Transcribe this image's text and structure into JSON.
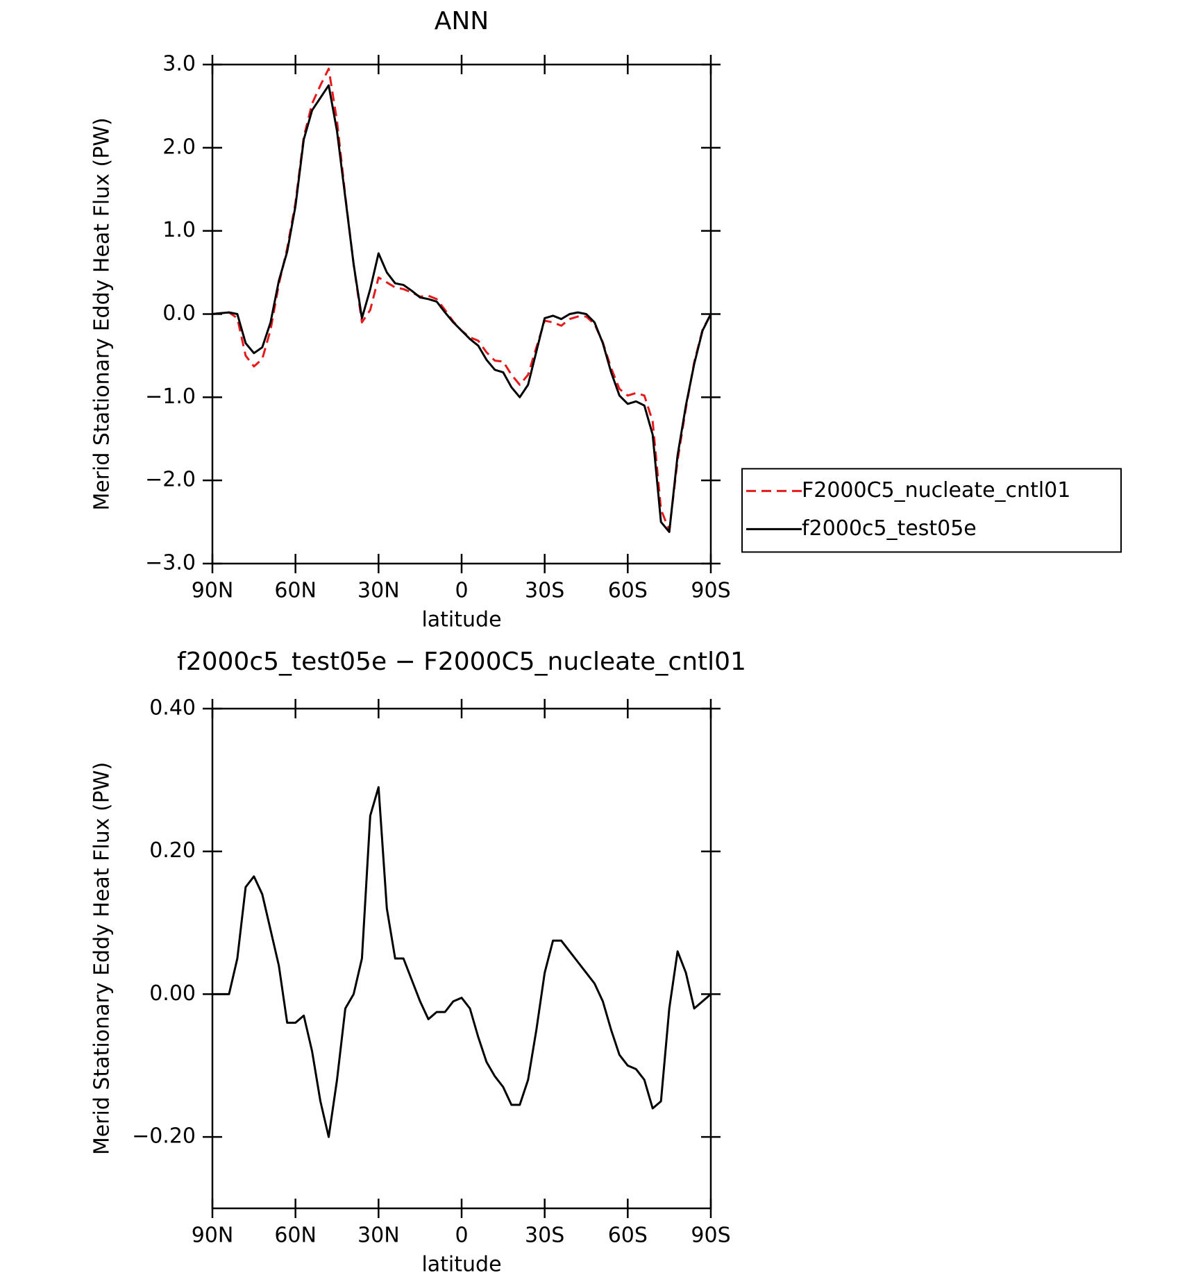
{
  "chart_data": [
    {
      "type": "line",
      "title": "ANN",
      "x_label": "latitude",
      "y_label": "Merid Stationary Eddy Heat Flux (PW)",
      "x": [
        90,
        87,
        84,
        81,
        78,
        75,
        72,
        69,
        66,
        63,
        60,
        57,
        54,
        51,
        48,
        45,
        42,
        39,
        36,
        33,
        30,
        27,
        24,
        21,
        18,
        15,
        12,
        9,
        6,
        3,
        0,
        -3,
        -6,
        -9,
        -12,
        -15,
        -18,
        -21,
        -24,
        -27,
        -30,
        -33,
        -36,
        -39,
        -42,
        -45,
        -48,
        -51,
        -54,
        -57,
        -60,
        -63,
        -66,
        -69,
        -72,
        -75,
        -78,
        -81,
        -84,
        -87,
        -90
      ],
      "series": [
        {
          "name": "F2000C5_nucleate_cntl01",
          "color": "#e41a1c",
          "dashed": true,
          "values": [
            0,
            0.01,
            0.02,
            -0.05,
            -0.5,
            -0.63,
            -0.54,
            -0.19,
            0.36,
            0.79,
            1.34,
            2.13,
            2.53,
            2.75,
            2.95,
            2.32,
            1.42,
            0.6,
            -0.1,
            0.05,
            0.44,
            0.38,
            0.32,
            0.3,
            0.26,
            0.21,
            0.22,
            0.18,
            0.05,
            -0.09,
            -0.2,
            -0.28,
            -0.32,
            -0.46,
            -0.56,
            -0.57,
            -0.73,
            -0.85,
            -0.73,
            -0.4,
            -0.08,
            -0.1,
            -0.14,
            -0.06,
            -0.03,
            -0.03,
            -0.12,
            -0.34,
            -0.65,
            -0.9,
            -0.98,
            -0.95,
            -0.98,
            -1.29,
            -2.35,
            -2.6,
            -1.76,
            -1.13,
            -0.58,
            -0.19,
            0
          ]
        },
        {
          "name": "f2000c5_test05e",
          "color": "#000000",
          "dashed": false,
          "values": [
            0,
            0.01,
            0.02,
            0,
            -0.35,
            -0.47,
            -0.4,
            -0.1,
            0.4,
            0.75,
            1.3,
            2.1,
            2.45,
            2.6,
            2.75,
            2.2,
            1.4,
            0.6,
            -0.05,
            0.3,
            0.73,
            0.5,
            0.37,
            0.35,
            0.28,
            0.2,
            0.18,
            0.15,
            0.02,
            -0.1,
            -0.2,
            -0.3,
            -0.38,
            -0.55,
            -0.67,
            -0.7,
            -0.88,
            -1.0,
            -0.85,
            -0.45,
            -0.05,
            -0.02,
            -0.06,
            0,
            0.02,
            0,
            -0.1,
            -0.35,
            -0.7,
            -0.98,
            -1.08,
            -1.05,
            -1.1,
            -1.45,
            -2.5,
            -2.62,
            -1.7,
            -1.1,
            -0.6,
            -0.2,
            0
          ]
        }
      ],
      "xlim": [
        90,
        -90
      ],
      "xticks": [
        {
          "value": 90,
          "label": "90N"
        },
        {
          "value": 60,
          "label": "60N"
        },
        {
          "value": 30,
          "label": "30N"
        },
        0,
        {
          "value": -30,
          "label": "30S"
        },
        {
          "value": -60,
          "label": "60S"
        },
        {
          "value": -90,
          "label": "90S"
        }
      ],
      "ylim": [
        -3,
        3
      ],
      "yticks": [
        {
          "value": 3,
          "label": "3.0"
        },
        {
          "value": 2,
          "label": "2.0"
        },
        {
          "value": 1,
          "label": "1.0"
        },
        {
          "value": 0,
          "label": "0.0"
        },
        {
          "value": -1,
          "label": "−1.0"
        },
        {
          "value": -2,
          "label": "−2.0"
        },
        {
          "value": -3,
          "label": "−3.0"
        }
      ],
      "legend": "right"
    },
    {
      "type": "line",
      "title": "f2000c5_test05e − F2000C5_nucleate_cntl01",
      "x_label": "latitude",
      "y_label": "Merid Stationary Eddy Heat Flux (PW)",
      "x": [
        90,
        87,
        84,
        81,
        78,
        75,
        72,
        69,
        66,
        63,
        60,
        57,
        54,
        51,
        48,
        45,
        42,
        39,
        36,
        33,
        30,
        27,
        24,
        21,
        18,
        15,
        12,
        9,
        6,
        3,
        0,
        -3,
        -6,
        -9,
        -12,
        -15,
        -18,
        -21,
        -24,
        -27,
        -30,
        -33,
        -36,
        -39,
        -42,
        -45,
        -48,
        -51,
        -54,
        -57,
        -60,
        -63,
        -66,
        -69,
        -72,
        -75,
        -78,
        -81,
        -84,
        -87,
        -90
      ],
      "series": [
        {
          "color": "#000000",
          "dashed": false,
          "values": [
            0,
            0,
            0,
            0.05,
            0.15,
            0.165,
            0.14,
            0.09,
            0.04,
            -0.04,
            -0.04,
            -0.03,
            -0.08,
            -0.15,
            -0.2,
            -0.12,
            -0.02,
            0,
            0.05,
            0.25,
            0.29,
            0.12,
            0.05,
            0.05,
            0.02,
            -0.01,
            -0.035,
            -0.025,
            -0.025,
            -0.01,
            -0.005,
            -0.02,
            -0.06,
            -0.095,
            -0.115,
            -0.13,
            -0.155,
            -0.155,
            -0.12,
            -0.05,
            0.03,
            0.075,
            0.075,
            0.06,
            0.045,
            0.03,
            0.015,
            -0.01,
            -0.05,
            -0.085,
            -0.1,
            -0.105,
            -0.12,
            -0.16,
            -0.15,
            -0.02,
            0.06,
            0.03,
            -0.02,
            -0.01,
            0
          ]
        }
      ],
      "xlim": [
        90,
        -90
      ],
      "xticks": [
        {
          "value": 90,
          "label": "90N"
        },
        {
          "value": 60,
          "label": "60N"
        },
        {
          "value": 30,
          "label": "30N"
        },
        0,
        {
          "value": -30,
          "label": "30S"
        },
        {
          "value": -60,
          "label": "60S"
        },
        {
          "value": -90,
          "label": "90S"
        }
      ],
      "ylim": [
        -0.3,
        0.4
      ],
      "yticks": [
        {
          "value": 0.4,
          "label": "0.40"
        },
        {
          "value": 0.2,
          "label": "0.20"
        },
        {
          "value": 0,
          "label": "0.00"
        },
        {
          "value": -0.2,
          "label": "−0.20"
        }
      ]
    }
  ]
}
